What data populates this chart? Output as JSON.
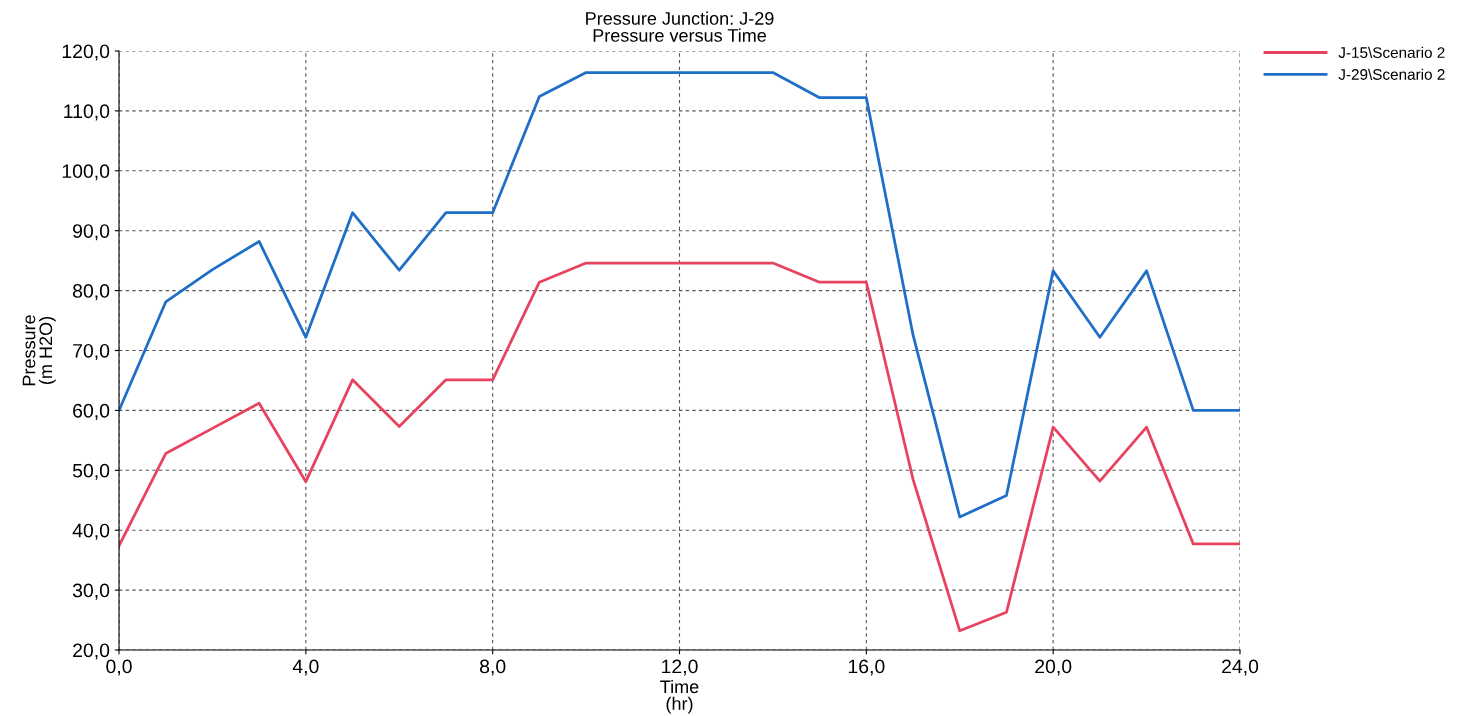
{
  "chart_data": {
    "type": "line",
    "title": "Pressure Junction: J-29",
    "subtitle": "Pressure versus Time",
    "xlabel": "Time\n(hr)",
    "ylabel": "Pressure\n(m H2O)",
    "x": [
      0,
      1,
      2,
      3,
      4,
      5,
      6,
      7,
      8,
      9,
      10,
      11,
      12,
      13,
      14,
      15,
      16,
      17,
      18,
      19,
      20,
      21,
      22,
      23,
      24
    ],
    "series": [
      {
        "name": "J-15\\Scenario 2",
        "color": "#e8435e",
        "values": [
          37.4,
          52.8,
          57.0,
          61.2,
          48.1,
          65.1,
          57.3,
          65.1,
          65.1,
          81.4,
          84.6,
          84.6,
          84.6,
          84.6,
          84.6,
          81.4,
          81.4,
          48.5,
          23.2,
          26.3,
          57.2,
          48.2,
          57.2,
          37.7,
          37.7
        ]
      },
      {
        "name": "J-29\\Scenario 2",
        "color": "#1f6fc8",
        "values": [
          60.0,
          78.1,
          83.5,
          88.2,
          72.2,
          93.0,
          83.4,
          93.0,
          93.0,
          112.4,
          116.4,
          116.4,
          116.4,
          116.4,
          116.4,
          112.2,
          112.2,
          72.6,
          42.2,
          45.8,
          83.3,
          72.2,
          83.3,
          60.0,
          60.0
        ]
      }
    ],
    "xlim": [
      0,
      24
    ],
    "xticks": [
      {
        "value": 0,
        "label": "0,0"
      },
      {
        "value": 4,
        "label": "4,0"
      },
      {
        "value": 8,
        "label": "8,0"
      },
      {
        "value": 12,
        "label": "12,0"
      },
      {
        "value": 16,
        "label": "16,0"
      },
      {
        "value": 20,
        "label": "20,0"
      },
      {
        "value": 24,
        "label": "24,0"
      }
    ],
    "ylim": [
      20,
      120
    ],
    "yticks": [
      {
        "value": 20,
        "label": "20,0"
      },
      {
        "value": 30,
        "label": "30,0"
      },
      {
        "value": 40,
        "label": "40,0"
      },
      {
        "value": 50,
        "label": "50,0"
      },
      {
        "value": 60,
        "label": "60,0"
      },
      {
        "value": 70,
        "label": "70,0"
      },
      {
        "value": 80,
        "label": "80,0"
      },
      {
        "value": 90,
        "label": "90,0"
      },
      {
        "value": 100,
        "label": "100,0"
      },
      {
        "value": 110,
        "label": "110,0"
      },
      {
        "value": 120,
        "label": "120,0"
      }
    ],
    "grid": true,
    "legend": "top right",
    "line_style": "solid"
  }
}
